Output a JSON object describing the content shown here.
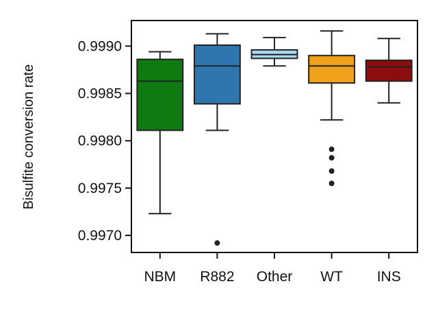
{
  "chart_data": {
    "type": "box",
    "title": "",
    "xlabel": "",
    "ylabel": "Bisulfite conversion rate",
    "ylim": [
      0.99682,
      0.99927
    ],
    "yticks": [
      "0.9970",
      "0.9975",
      "0.9980",
      "0.9985",
      "0.9990"
    ],
    "grid": false,
    "legend": "none",
    "categories": [
      "NBM",
      "R882",
      "Other",
      "WT",
      "INS"
    ],
    "colors": [
      "#0f7a0f",
      "#2e76b0",
      "#a9d8ee",
      "#f0a21c",
      "#8b0d0e"
    ],
    "boxes": [
      {
        "name": "NBM",
        "whisker_low": 0.99723,
        "q1": 0.99811,
        "median": 0.99863,
        "q3": 0.99886,
        "whisker_high": 0.99894,
        "outliers": []
      },
      {
        "name": "R882",
        "whisker_low": 0.99811,
        "q1": 0.99839,
        "median": 0.99879,
        "q3": 0.99901,
        "whisker_high": 0.99913,
        "outliers": [
          0.99692
        ]
      },
      {
        "name": "Other",
        "whisker_low": 0.99879,
        "q1": 0.99887,
        "median": 0.99891,
        "q3": 0.99896,
        "whisker_high": 0.99909,
        "outliers": []
      },
      {
        "name": "WT",
        "whisker_low": 0.99822,
        "q1": 0.99861,
        "median": 0.99879,
        "q3": 0.9989,
        "whisker_high": 0.99916,
        "outliers": [
          0.99791,
          0.99782,
          0.99768,
          0.99755
        ]
      },
      {
        "name": "INS",
        "whisker_low": 0.9984,
        "q1": 0.99863,
        "median": 0.99878,
        "q3": 0.99885,
        "whisker_high": 0.99908,
        "outliers": []
      }
    ]
  }
}
